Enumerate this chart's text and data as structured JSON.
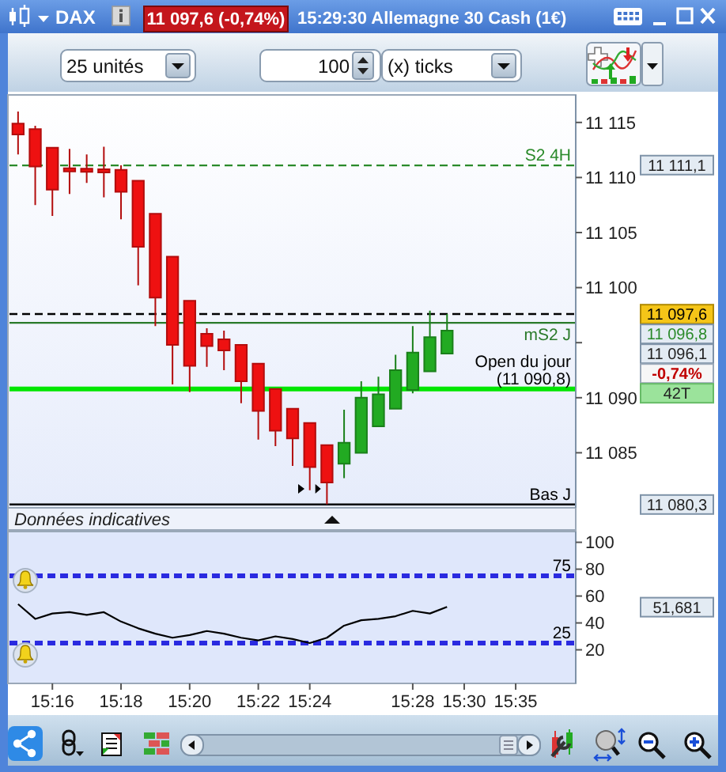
{
  "chart_data": [
    {
      "type": "candlestick",
      "title": "DAX",
      "subtitle": "15:29:30 Allemagne 30 Cash (1€)",
      "categories": [
        null,
        null,
        null,
        null,
        null,
        null,
        null,
        null,
        null,
        null,
        null,
        null,
        null,
        null,
        null,
        null,
        null,
        null,
        null,
        null,
        null,
        null,
        null,
        null,
        null,
        null,
        null,
        null,
        null,
        null,
        null,
        null,
        null
      ],
      "ohlc": [
        [
          11114.9,
          11116.0,
          11112.1,
          11113.9
        ],
        [
          11114.4,
          11114.7,
          11107.5,
          11111.0
        ],
        [
          11112.7,
          11112.7,
          11106.5,
          11108.9
        ],
        [
          11110.8,
          11112.6,
          11108.5,
          11110.6
        ],
        [
          11110.7,
          11112.1,
          11109.5,
          11110.6
        ],
        [
          11110.7,
          11112.8,
          11108.2,
          11110.5
        ],
        [
          11110.7,
          11111.1,
          11106.2,
          11108.7
        ],
        [
          11109.7,
          11109.7,
          11100.2,
          11103.7
        ],
        [
          11106.7,
          11106.7,
          11096.5,
          11099.1
        ],
        [
          11102.8,
          11102.8,
          11091.2,
          11094.8
        ],
        [
          11098.8,
          11098.8,
          11090.5,
          11092.9
        ],
        [
          11095.8,
          11096.3,
          11092.8,
          11094.7
        ],
        [
          11095.3,
          11096.1,
          11092.5,
          11094.3
        ],
        [
          11094.8,
          11094.8,
          11089.5,
          11091.5
        ],
        [
          11093.1,
          11093.1,
          11086.2,
          11088.8
        ],
        [
          11090.8,
          11090.8,
          11085.6,
          11087.0
        ],
        [
          11089.0,
          11089.0,
          11083.8,
          11086.3
        ],
        [
          11087.7,
          11087.7,
          11081.6,
          11083.7
        ],
        [
          11085.7,
          11085.7,
          11080.3,
          11082.3
        ],
        [
          11084.0,
          11088.9,
          11082.7,
          11085.9
        ],
        [
          11085.0,
          11091.5,
          11085.0,
          11090.0
        ],
        [
          11087.4,
          11091.9,
          11087.4,
          11090.3
        ],
        [
          11089.0,
          11093.9,
          11089.0,
          11092.5
        ],
        [
          11090.7,
          11096.5,
          11090.4,
          11094.1
        ],
        [
          11092.4,
          11097.9,
          11092.4,
          11095.5
        ],
        [
          11094.0,
          11097.6,
          11094.0,
          11096.1
        ],
        null,
        null,
        null,
        null,
        null,
        null,
        null
      ],
      "colors": [
        "#ee1111",
        "#ee1111",
        "#ee1111",
        "#ee1111",
        "#ee1111",
        "#ee1111",
        "#ee1111",
        "#ee1111",
        "#ee1111",
        "#ee1111",
        "#ee1111",
        "#ee1111",
        "#ee1111",
        "#ee1111",
        "#ee1111",
        "#ee1111",
        "#ee1111",
        "#ee1111",
        "#ee1111",
        "#22aa22",
        "#22aa22",
        "#22aa22",
        "#22aa22",
        "#22aa22",
        "#22aa22",
        "#22aa22",
        null,
        null,
        null,
        null,
        null,
        null,
        null
      ],
      "ylim": [
        11080,
        11117.5
      ],
      "yticks": [
        {
          "value": 11085,
          "label": "11 085"
        },
        {
          "value": 11090,
          "label": "11 090"
        },
        {
          "value": 11095,
          "label": null
        },
        {
          "value": 11100,
          "label": "11 100"
        },
        {
          "value": 11105,
          "label": "11 105"
        },
        {
          "value": 11110,
          "label": "11 110"
        },
        {
          "value": 11115,
          "label": "11 115"
        }
      ],
      "tick_labels": "y",
      "ref_lines": [
        {
          "axis": "y",
          "value": 11111.1,
          "label": "S2 4H",
          "color": "#2a8a2a",
          "line_style": "dashed"
        },
        {
          "axis": "y",
          "value": 11097.6,
          "color": "#000000",
          "line_style": "dashed"
        },
        {
          "axis": "y",
          "value": 11096.8,
          "label": "mS2 J",
          "color": "#2a7a2a",
          "line_style": "solid"
        },
        {
          "axis": "y",
          "value": 11090.8,
          "label": "Open du jour (11 090,8)",
          "color": "#00e600",
          "line_style": "solid"
        },
        {
          "axis": "y",
          "value": 11080.3,
          "label": "Bas J",
          "color": "#000000",
          "line_style": "solid"
        }
      ],
      "annotations": [
        "11 097,6 (-0,74%)",
        "25 unités",
        "100",
        "(x) ticks",
        "Données indicatives",
        "-0,74%",
        "42T",
        "11 111,1",
        "11 097,6",
        "11 096,8",
        "11 096,1",
        "11 080,3"
      ]
    },
    {
      "type": "line",
      "categories": [
        null,
        null,
        "15:16",
        null,
        null,
        null,
        "15:18",
        null,
        null,
        null,
        "15:20",
        null,
        null,
        null,
        "15:22",
        null,
        null,
        "15:24",
        null,
        null,
        null,
        null,
        null,
        "15:28",
        null,
        null,
        "15:30",
        null,
        null,
        "15:35",
        null,
        null,
        null
      ],
      "values": [
        54,
        43,
        47,
        48,
        46,
        48,
        41,
        36,
        32,
        29,
        31,
        34,
        32,
        29,
        27,
        30,
        28,
        25,
        29,
        38,
        42,
        43,
        45,
        49,
        47,
        52,
        null,
        null,
        null,
        null,
        null,
        null,
        null
      ],
      "color": "#000000",
      "ylim": [
        -5,
        108
      ],
      "yticks": [
        20,
        40,
        60,
        80,
        100
      ],
      "ref_lines": [
        {
          "axis": "y",
          "value": 75,
          "label": "75",
          "color": "#2a2ae0",
          "line_style": "dashed"
        },
        {
          "axis": "y",
          "value": 25,
          "label": "25",
          "color": "#2a2ae0",
          "line_style": "dashed"
        }
      ],
      "annotations": [
        "51,681"
      ]
    }
  ]
}
